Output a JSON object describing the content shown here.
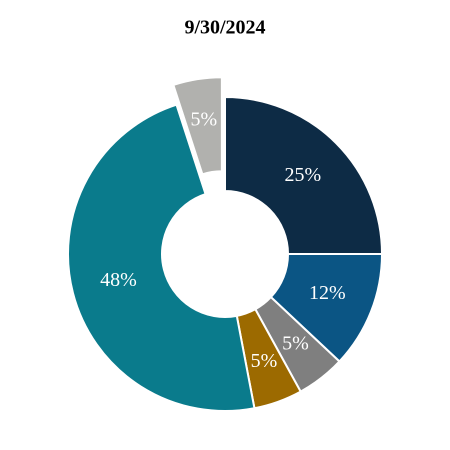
{
  "chart_data": {
    "type": "donut",
    "title": "9/30/2024",
    "values": [
      25,
      12,
      5,
      5,
      48,
      5
    ],
    "value_labels": [
      "25%",
      "12%",
      "5%",
      "5%",
      "48%",
      "5%"
    ],
    "colors": [
      "#0d2b45",
      "#0b5584",
      "#7f7f7f",
      "#9c6a00",
      "#0a7b8c",
      "#b1b1ae"
    ],
    "explode": [
      false,
      false,
      false,
      false,
      false,
      true
    ]
  }
}
